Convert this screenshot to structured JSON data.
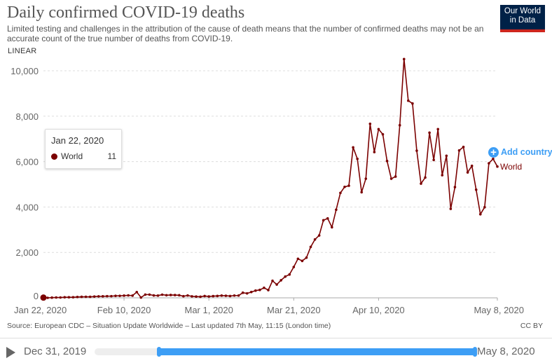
{
  "header": {
    "title": "Daily confirmed COVID-19 deaths",
    "subtitle": "Limited testing and challenges in the attribution of the cause of death means that the number of confirmed deaths may not be an accurate count of the true number of deaths from COVID-19.",
    "logo": "Our World in Data",
    "scale_toggle": "LINEAR"
  },
  "colors": {
    "series": "#7b0000",
    "accent": "#3d9ef5",
    "logo_bg": "#002147",
    "logo_stripe": "#ce261e"
  },
  "chart_data": {
    "type": "line",
    "title": "Daily confirmed COVID-19 deaths",
    "xlabel": "",
    "ylabel": "",
    "ylim": [
      0,
      10500
    ],
    "y_ticks": [
      0,
      2000,
      4000,
      6000,
      8000,
      10000
    ],
    "y_tick_labels": [
      "0",
      "2,000",
      "4,000",
      "6,000",
      "8,000",
      "10,000"
    ],
    "x_start": "Jan 22, 2020",
    "x_end": "May 8, 2020",
    "x_tick_days": [
      0,
      19,
      39,
      59,
      79,
      107
    ],
    "x_tick_labels": [
      "Jan 22, 2020",
      "Feb 10, 2020",
      "Mar 1, 2020",
      "Mar 21, 2020",
      "Apr 10, 2020",
      "May 8, 2020"
    ],
    "grid": true,
    "series": [
      {
        "name": "World",
        "values": [
          11,
          0,
          9,
          15,
          15,
          25,
          25,
          26,
          38,
          43,
          46,
          45,
          57,
          64,
          66,
          73,
          73,
          86,
          89,
          97,
          108,
          97,
          254,
          13,
          143,
          143,
          106,
          98,
          139,
          115,
          125,
          120,
          114,
          71,
          104,
          64,
          55,
          48,
          79,
          59,
          75,
          82,
          98,
          91,
          78,
          100,
          100,
          225,
          195,
          256,
          318,
          349,
          441,
          340,
          750,
          586,
          772,
          935,
          1028,
          1358,
          1719,
          1626,
          1769,
          2244,
          2571,
          2747,
          3416,
          3497,
          3108,
          3880,
          4620,
          4886,
          4938,
          6626,
          6121,
          4651,
          5247,
          7664,
          6420,
          7429,
          7201,
          6028,
          5247,
          5340,
          7602,
          10515,
          8682,
          8559,
          6481,
          5031,
          5299,
          7274,
          6071,
          7429,
          5401,
          6256,
          3920,
          4877,
          6491,
          6645,
          5525,
          5812,
          4762,
          3682,
          3991,
          5926,
          6121,
          5781
        ]
      }
    ]
  },
  "tooltip": {
    "date": "Jan 22, 2020",
    "series": "World",
    "value": "11"
  },
  "legend": {
    "add_country": "Add country",
    "series_label": "World"
  },
  "footer": {
    "source": "Source: European CDC – Situation Update Worldwide – Last updated 7th May, 11:15 (London time)",
    "license": "CC BY"
  },
  "timeline": {
    "start_label": "Dec 31, 2019",
    "end_label": "May 8, 2020",
    "range_start_fraction": 0.17,
    "range_end_fraction": 1.0
  }
}
